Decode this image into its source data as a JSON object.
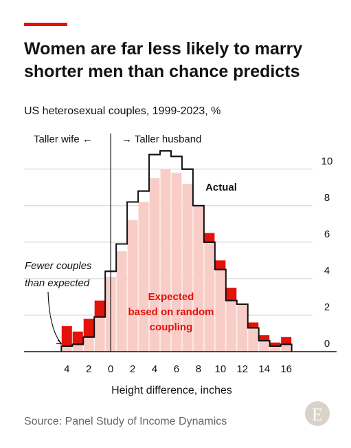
{
  "chart_data": {
    "type": "histogram-step",
    "title": [
      "Women are far less likely to marry",
      "shorter men than chance predicts"
    ],
    "subtitle": "US heterosexual couples, 1999-2023, %",
    "x_label": "Height difference, inches",
    "source": "Source: Panel Study of Income Dynamics",
    "logo": "E",
    "annotations": {
      "left": "Taller wife ←",
      "right": "→ Taller husband",
      "actual": "Actual",
      "expected": [
        "Expected",
        "based on random",
        "coupling"
      ],
      "fewer": [
        "Fewer couples",
        "than expected"
      ]
    },
    "x": [
      -4,
      -3,
      -2,
      -1,
      0,
      1,
      2,
      3,
      4,
      5,
      6,
      7,
      8,
      9,
      10,
      11,
      12,
      13,
      14,
      15,
      16
    ],
    "series": [
      {
        "name": "Expected",
        "color": "#f9cdc7",
        "values": [
          1.4,
          1.1,
          1.8,
          2.8,
          4.1,
          5.5,
          7.2,
          8.2,
          9.5,
          10.0,
          9.8,
          9.2,
          8.0,
          6.5,
          5.0,
          3.5,
          2.6,
          1.6,
          0.9,
          0.5,
          0.8
        ]
      },
      {
        "name": "Actual",
        "color": "#121212",
        "values": [
          0.3,
          0.4,
          0.8,
          1.9,
          4.4,
          5.9,
          8.2,
          8.8,
          10.8,
          11.0,
          10.7,
          10.0,
          8.0,
          6.0,
          4.5,
          2.8,
          2.6,
          1.3,
          0.6,
          0.3,
          0.4
        ]
      }
    ],
    "excess_color": "#e3120b",
    "xlim": [
      -7.9,
      18.4
    ],
    "ylim": [
      0,
      11.5
    ],
    "xticks": [
      {
        "value": -4,
        "label": "4"
      },
      {
        "value": -2,
        "label": "2"
      },
      0,
      2,
      4,
      6,
      8,
      10,
      12,
      14,
      16
    ],
    "yticks": [
      0,
      2,
      4,
      6,
      8,
      10
    ],
    "grid": true
  }
}
